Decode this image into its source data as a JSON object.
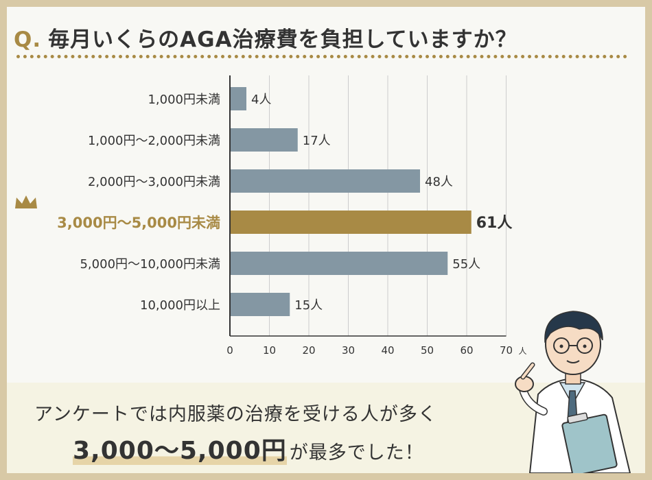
{
  "title": {
    "prefix": "Q.",
    "text": "毎月いくらのAGA治療費を負担していますか？"
  },
  "colors": {
    "accent": "#a88a45",
    "bar": "#8497a3",
    "highlight_bar": "#a88a45",
    "frame": "#d8c9a6"
  },
  "chart_data": {
    "type": "bar",
    "orientation": "horizontal",
    "categories": [
      "1,000円未満",
      "1,000円〜2,000円未満",
      "2,000円〜3,000円未満",
      "3,000円〜5,000円未満",
      "5,000円〜10,000円未満",
      "10,000円以上"
    ],
    "values": [
      4,
      17,
      48,
      61,
      55,
      15
    ],
    "data_labels": [
      "4人",
      "17人",
      "48人",
      "61人",
      "55人",
      "15人"
    ],
    "highlight_index": 3,
    "highlight_icon": "crown-icon",
    "xlim": [
      0,
      70
    ],
    "x_ticks": [
      "0",
      "10",
      "20",
      "30",
      "40",
      "50",
      "60",
      "70"
    ],
    "x_unit": "人",
    "grid": true
  },
  "summary": {
    "line1": "アンケートでは内服薬の治療を受ける人が多く",
    "highlight": "3,000〜5,000円",
    "tail": "が最多でした！"
  },
  "illustration": {
    "icon": "doctor-pointing-icon"
  }
}
